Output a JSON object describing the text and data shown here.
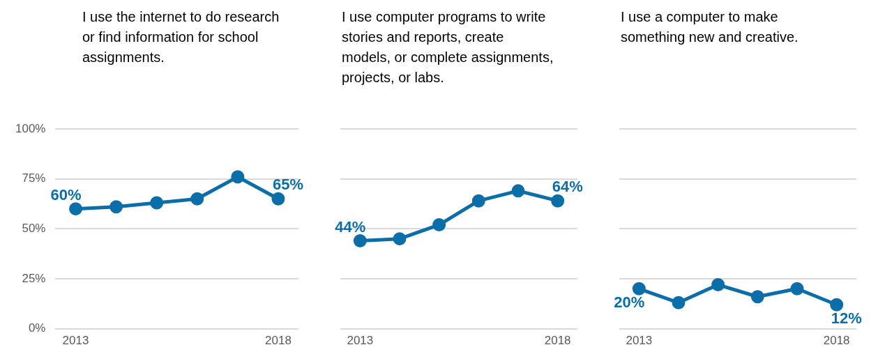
{
  "chart_data": [
    {
      "type": "line",
      "title": "I use the internet to do research or find information for school assignments.",
      "categories": [
        "2013",
        null,
        null,
        null,
        null,
        "2018"
      ],
      "ylim": [
        0,
        100
      ],
      "yticks": [
        {
          "value": 0,
          "label": "0%"
        },
        {
          "value": 25,
          "label": "25%"
        },
        {
          "value": 50,
          "label": "50%"
        },
        {
          "value": 75,
          "label": "75%"
        },
        {
          "value": 100,
          "label": "100%"
        }
      ],
      "grid": "y",
      "marker": "circle",
      "series": [
        {
          "color": "#0b6ea9",
          "values": [
            60,
            61,
            63,
            65,
            76,
            65
          ],
          "value_labels": [
            "60%",
            null,
            null,
            null,
            null,
            "65%"
          ]
        }
      ]
    },
    {
      "type": "line",
      "title": "I use computer programs to write stories and reports, create models, or complete assignments, projects, or labs.",
      "categories": [
        "2013",
        null,
        null,
        null,
        null,
        "2018"
      ],
      "ylim": [
        0,
        100
      ],
      "yticks": [
        0,
        25,
        50,
        75,
        100
      ],
      "grid": "y",
      "tick_labels": "x",
      "marker": "circle",
      "series": [
        {
          "color": "#0b6ea9",
          "values": [
            44,
            45,
            52,
            64,
            69,
            64
          ],
          "value_labels": [
            "44%",
            null,
            null,
            null,
            null,
            "64%"
          ]
        }
      ]
    },
    {
      "type": "line",
      "title": "I use a computer to make something new and creative.",
      "categories": [
        "2013",
        null,
        null,
        null,
        null,
        "2018"
      ],
      "ylim": [
        0,
        100
      ],
      "yticks": [
        0,
        25,
        50,
        75,
        100
      ],
      "grid": "y",
      "tick_labels": "x",
      "marker": "circle",
      "series": [
        {
          "color": "#0b6ea9",
          "values": [
            20,
            13,
            22,
            16,
            20,
            12
          ],
          "value_labels": [
            "20%",
            null,
            null,
            null,
            null,
            "12%"
          ]
        }
      ]
    }
  ]
}
